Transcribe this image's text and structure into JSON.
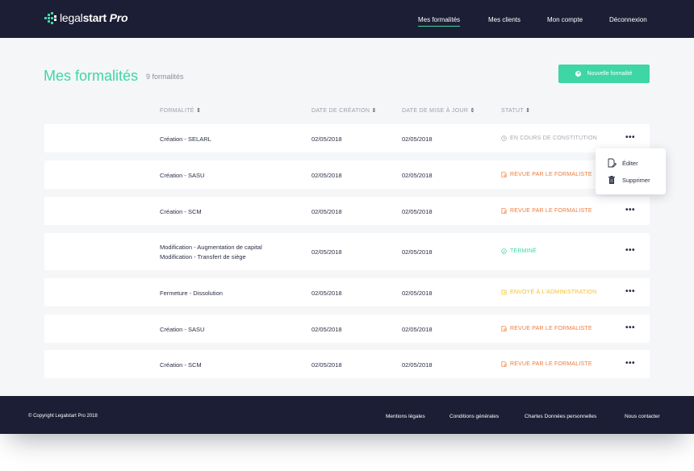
{
  "header": {
    "logo_main": "legal",
    "logo_bold": "start",
    "logo_pro": "Pro",
    "nav": [
      "Mes formalités",
      "Mes clients",
      "Mon compte",
      "Déconnexion"
    ]
  },
  "page": {
    "title": "Mes formalités",
    "count": "9 formalités",
    "new_button": "Nouvelle formalité"
  },
  "table": {
    "columns": [
      "FORMALITÉ",
      "DATE DE CRÉATION",
      "DATE DE MISE À JOUR",
      "STATUT"
    ],
    "rows": [
      {
        "name": [
          "Création - SELARL"
        ],
        "created": "02/05/2018",
        "updated": "02/05/2018",
        "status": "EN COURS DE CONSTITUTION",
        "status_kind": "pending"
      },
      {
        "name": [
          "Création - SASU"
        ],
        "created": "02/05/2018",
        "updated": "02/05/2018",
        "status": "REVUE PAR LE FORMALISTE",
        "status_kind": "review"
      },
      {
        "name": [
          "Création - SCM"
        ],
        "created": "02/05/2018",
        "updated": "02/05/2018",
        "status": "REVUE PAR LE FORMALISTE",
        "status_kind": "review"
      },
      {
        "name": [
          "Modification - Augmentation de capital",
          "Modification - Transfert de siège"
        ],
        "created": "02/05/2018",
        "updated": "02/05/2018",
        "status": "TERMINÉ",
        "status_kind": "done"
      },
      {
        "name": [
          "Fermeture - Dissolution"
        ],
        "created": "02/05/2018",
        "updated": "02/05/2018",
        "status": "ENVOYÉ À L'ADMINISTRATION",
        "status_kind": "sent"
      },
      {
        "name": [
          "Création - SASU"
        ],
        "created": "02/05/2018",
        "updated": "02/05/2018",
        "status": "REVUE PAR LE FORMALISTE",
        "status_kind": "review"
      },
      {
        "name": [
          "Création - SCM"
        ],
        "created": "02/05/2018",
        "updated": "02/05/2018",
        "status": "REVUE PAR LE FORMALISTE",
        "status_kind": "review"
      }
    ],
    "more_label": "•••"
  },
  "dropdown": {
    "edit": "Éditer",
    "delete": "Supprimer"
  },
  "footer": {
    "copyright": "© Copyright Legalstart Pro 2018",
    "links": [
      "Mentions légales",
      "Conditions générales",
      "Chartes Données personnelles",
      "Nous contacter"
    ]
  },
  "colors": {
    "header_bg": "#1b1e34",
    "accent": "#3ed6a4",
    "status_pending": "#a6aab5",
    "status_review": "#f07a3a",
    "status_done": "#3ed6a4",
    "status_sent": "#f2c12e"
  }
}
